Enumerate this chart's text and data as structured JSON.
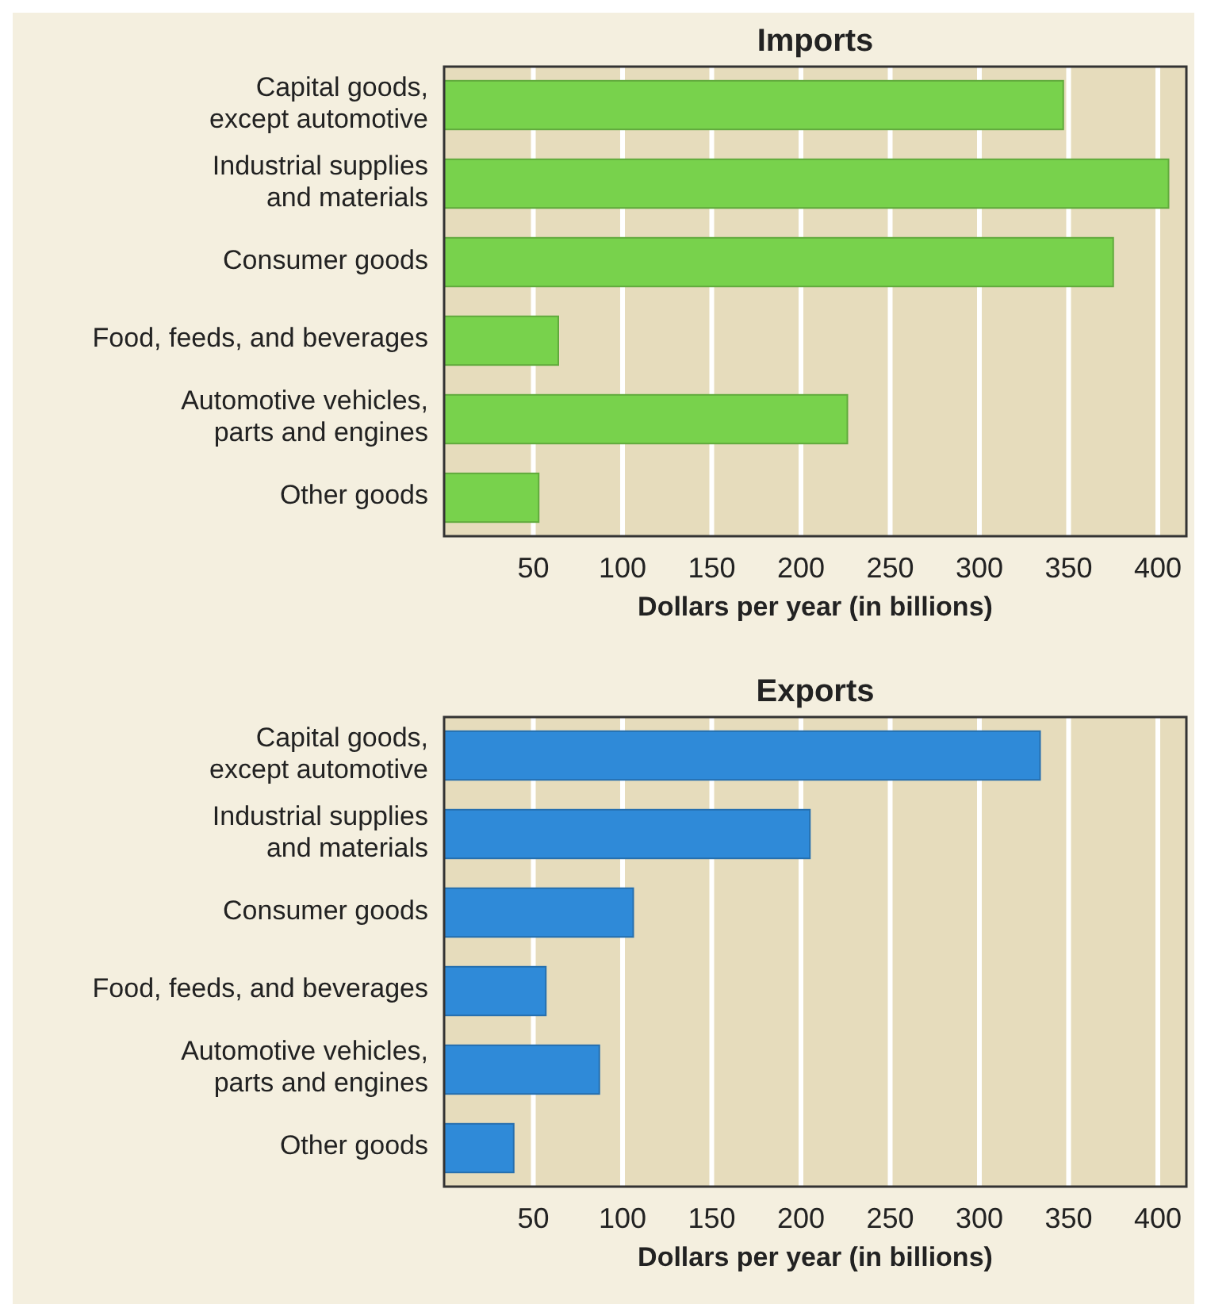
{
  "chart_data": [
    {
      "type": "bar",
      "orientation": "horizontal",
      "title": "Imports",
      "xlabel": "Dollars per year (in billions)",
      "categories": [
        "Capital goods,\nexcept automotive",
        "Industrial supplies\nand materials",
        "Consumer goods",
        "Food, feeds, and beverages",
        "Automotive vehicles,\nparts and engines",
        "Other goods"
      ],
      "values": [
        347,
        406,
        375,
        64,
        226,
        53
      ],
      "color": "#78d24c",
      "xlim": [
        0,
        416
      ],
      "xticks": [
        50,
        100,
        150,
        200,
        250,
        300,
        350,
        400
      ],
      "grid": "x"
    },
    {
      "type": "bar",
      "orientation": "horizontal",
      "title": "Exports",
      "xlabel": "Dollars per year (in billions)",
      "categories": [
        "Capital goods,\nexcept automotive",
        "Industrial supplies\nand materials",
        "Consumer goods",
        "Food, feeds, and beverages",
        "Automotive vehicles,\nparts and engines",
        "Other goods"
      ],
      "values": [
        334,
        205,
        106,
        57,
        87,
        39
      ],
      "color": "#2f8ad8",
      "xlim": [
        0,
        416
      ],
      "xticks": [
        50,
        100,
        150,
        200,
        250,
        300,
        350,
        400
      ],
      "grid": "x"
    }
  ]
}
